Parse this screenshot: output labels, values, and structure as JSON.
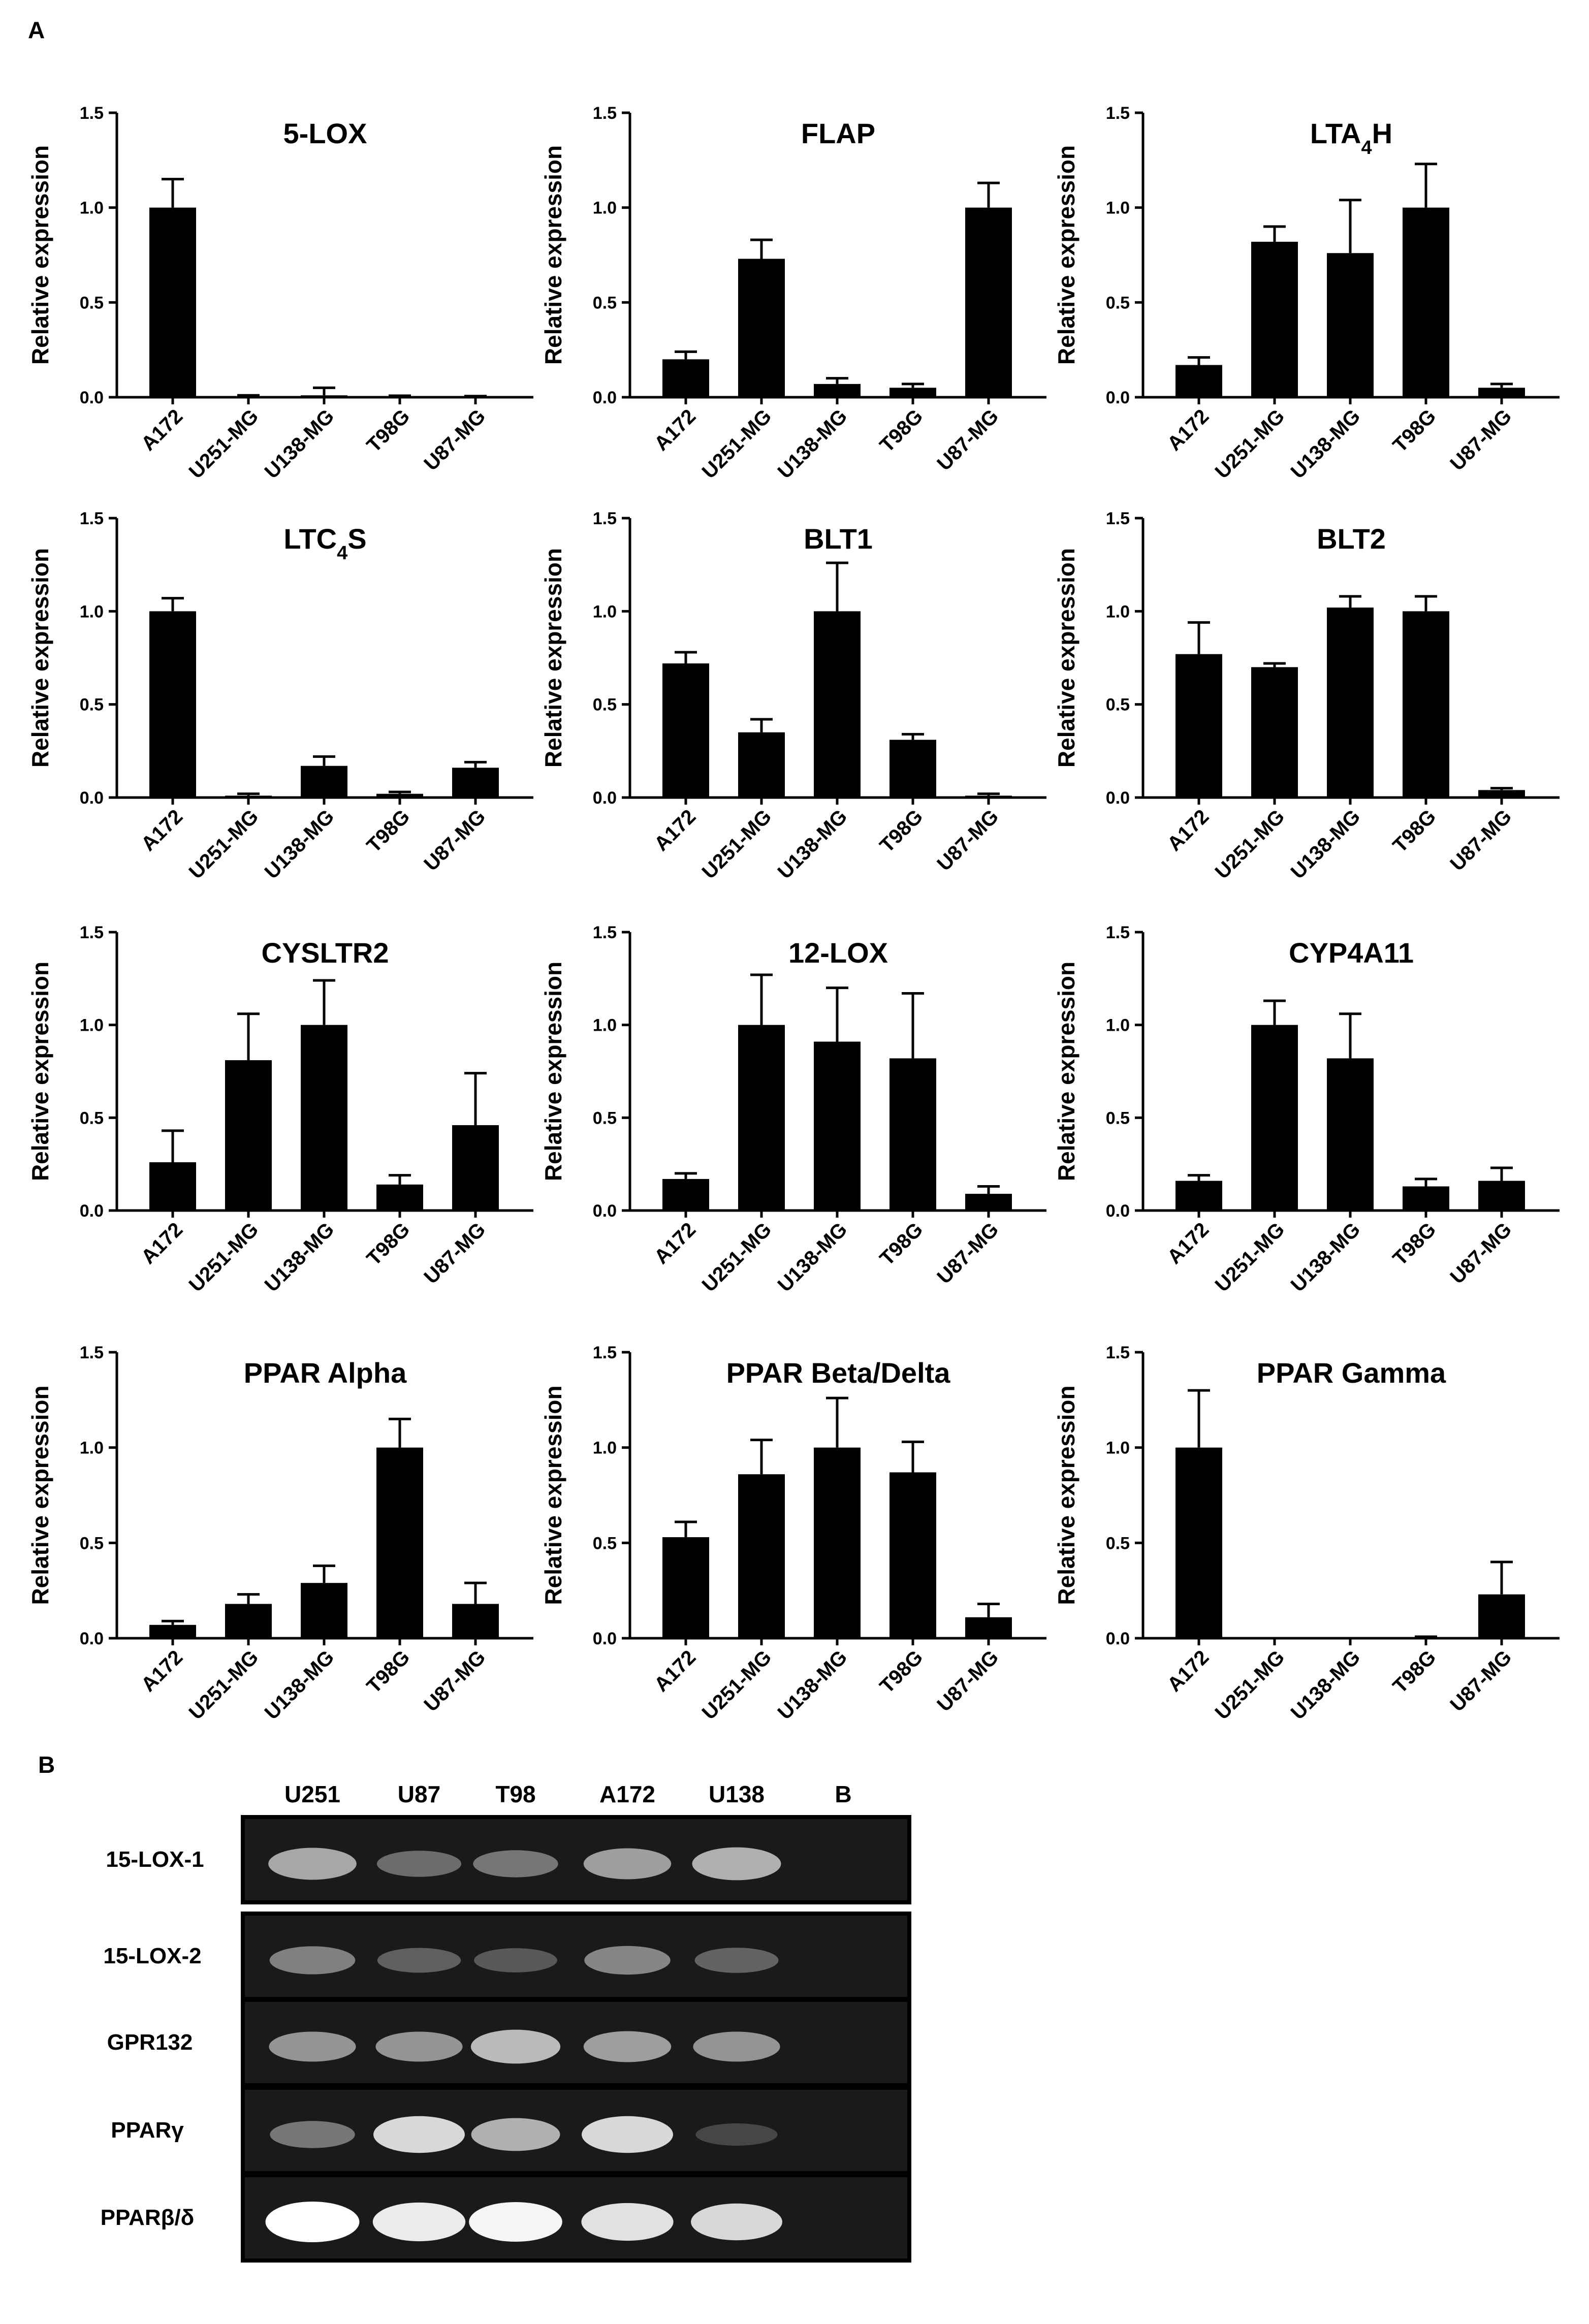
{
  "panels": {
    "a": "A",
    "b": "B"
  },
  "colors": {
    "bar": "#000000",
    "axis": "#000000",
    "gel_background": "#1a1a1a",
    "gel_border": "#000000",
    "band": "#ffffff"
  },
  "chart_data": [
    {
      "type": "bar",
      "title": "5-LOX",
      "ylabel": "Relative expression",
      "ylim": [
        0,
        1.5
      ],
      "yticks": [
        "0.0",
        "0.5",
        "1.0",
        "1.5"
      ],
      "categories": [
        "A172",
        "U251-MG",
        "U138-MG",
        "T98G",
        "U87-MG"
      ],
      "values": [
        1.0,
        0.005,
        0.01,
        0.004,
        0.003
      ],
      "errors": [
        0.15,
        0.005,
        0.04,
        0.004,
        0.003
      ]
    },
    {
      "type": "bar",
      "title": "FLAP",
      "ylabel": "Relative expression",
      "ylim": [
        0,
        1.5
      ],
      "yticks": [
        "0.0",
        "0.5",
        "1.0",
        "1.5"
      ],
      "categories": [
        "A172",
        "U251-MG",
        "U138-MG",
        "T98G",
        "U87-MG"
      ],
      "values": [
        0.2,
        0.73,
        0.07,
        0.05,
        1.0
      ],
      "errors": [
        0.04,
        0.1,
        0.03,
        0.02,
        0.13
      ]
    },
    {
      "type": "bar",
      "title": "LTA",
      "title_sub": "4",
      "title_suffix": "H",
      "ylabel": "Relative expression",
      "ylim": [
        0,
        1.5
      ],
      "yticks": [
        "0.0",
        "0.5",
        "1.0",
        "1.5"
      ],
      "categories": [
        "A172",
        "U251-MG",
        "U138-MG",
        "T98G",
        "U87-MG"
      ],
      "values": [
        0.17,
        0.82,
        0.76,
        1.0,
        0.05
      ],
      "errors": [
        0.04,
        0.08,
        0.28,
        0.23,
        0.02
      ]
    },
    {
      "type": "bar",
      "title": "LTC",
      "title_sub": "4",
      "title_suffix": "S",
      "ylabel": "Relative expression",
      "ylim": [
        0,
        1.5
      ],
      "yticks": [
        "0.0",
        "0.5",
        "1.0",
        "1.5"
      ],
      "categories": [
        "A172",
        "U251-MG",
        "U138-MG",
        "T98G",
        "U87-MG"
      ],
      "values": [
        1.0,
        0.01,
        0.17,
        0.02,
        0.16
      ],
      "errors": [
        0.07,
        0.01,
        0.05,
        0.01,
        0.03
      ]
    },
    {
      "type": "bar",
      "title": "BLT1",
      "ylabel": "Relative expression",
      "ylim": [
        0,
        1.5
      ],
      "yticks": [
        "0.0",
        "0.5",
        "1.0",
        "1.5"
      ],
      "categories": [
        "A172",
        "U251-MG",
        "U138-MG",
        "T98G",
        "U87-MG"
      ],
      "values": [
        0.72,
        0.35,
        1.0,
        0.31,
        0.01
      ],
      "errors": [
        0.06,
        0.07,
        0.26,
        0.03,
        0.01
      ]
    },
    {
      "type": "bar",
      "title": "BLT2",
      "ylabel": "Relative expression",
      "ylim": [
        0,
        1.5
      ],
      "yticks": [
        "0.0",
        "0.5",
        "1.0",
        "1.5"
      ],
      "categories": [
        "A172",
        "U251-MG",
        "U138-MG",
        "T98G",
        "U87-MG"
      ],
      "values": [
        0.77,
        0.7,
        1.02,
        1.0,
        0.04
      ],
      "errors": [
        0.17,
        0.02,
        0.06,
        0.08,
        0.01
      ]
    },
    {
      "type": "bar",
      "title": "CYSLTR2",
      "ylabel": "Relative expression",
      "ylim": [
        0,
        1.5
      ],
      "yticks": [
        "0.0",
        "0.5",
        "1.0",
        "1.5"
      ],
      "categories": [
        "A172",
        "U251-MG",
        "U138-MG",
        "T98G",
        "U87-MG"
      ],
      "values": [
        0.26,
        0.81,
        1.0,
        0.14,
        0.46
      ],
      "errors": [
        0.17,
        0.25,
        0.24,
        0.05,
        0.28
      ]
    },
    {
      "type": "bar",
      "title": "12-LOX",
      "ylabel": "Relative expression",
      "ylim": [
        0,
        1.5
      ],
      "yticks": [
        "0.0",
        "0.5",
        "1.0",
        "1.5"
      ],
      "categories": [
        "A172",
        "U251-MG",
        "U138-MG",
        "T98G",
        "U87-MG"
      ],
      "values": [
        0.17,
        1.0,
        0.91,
        0.82,
        0.09
      ],
      "errors": [
        0.03,
        0.27,
        0.29,
        0.35,
        0.04
      ]
    },
    {
      "type": "bar",
      "title": "CYP4A11",
      "ylabel": "Relative expression",
      "ylim": [
        0,
        1.5
      ],
      "yticks": [
        "0.0",
        "0.5",
        "1.0",
        "1.5"
      ],
      "categories": [
        "A172",
        "U251-MG",
        "U138-MG",
        "T98G",
        "U87-MG"
      ],
      "values": [
        0.16,
        1.0,
        0.82,
        0.13,
        0.16
      ],
      "errors": [
        0.03,
        0.13,
        0.24,
        0.04,
        0.07
      ]
    },
    {
      "type": "bar",
      "title": "PPAR Alpha",
      "ylabel": "Relative expression",
      "ylim": [
        0,
        1.5
      ],
      "yticks": [
        "0.0",
        "0.5",
        "1.0",
        "1.5"
      ],
      "categories": [
        "A172",
        "U251-MG",
        "U138-MG",
        "T98G",
        "U87-MG"
      ],
      "values": [
        0.07,
        0.18,
        0.29,
        1.0,
        0.18
      ],
      "errors": [
        0.02,
        0.05,
        0.09,
        0.15,
        0.11
      ]
    },
    {
      "type": "bar",
      "title": "PPAR Beta/Delta",
      "ylabel": "Relative expression",
      "ylim": [
        0,
        1.5
      ],
      "yticks": [
        "0.0",
        "0.5",
        "1.0",
        "1.5"
      ],
      "categories": [
        "A172",
        "U251-MG",
        "U138-MG",
        "T98G",
        "U87-MG"
      ],
      "values": [
        0.53,
        0.86,
        1.0,
        0.87,
        0.11
      ],
      "errors": [
        0.08,
        0.18,
        0.26,
        0.16,
        0.07
      ]
    },
    {
      "type": "bar",
      "title": "PPAR Gamma",
      "ylabel": "Relative expression",
      "ylim": [
        0,
        1.5
      ],
      "yticks": [
        "0.0",
        "0.5",
        "1.0",
        "1.5"
      ],
      "categories": [
        "A172",
        "U251-MG",
        "U138-MG",
        "T98G",
        "U87-MG"
      ],
      "values": [
        1.0,
        0.0,
        0.0,
        0.004,
        0.23
      ],
      "errors": [
        0.3,
        0.0,
        0.0,
        0.004,
        0.17
      ]
    }
  ],
  "gel": {
    "columns": [
      "U251",
      "U87",
      "T98",
      "A172",
      "U138",
      "B"
    ],
    "rows": [
      {
        "label": "15-LOX-1",
        "intensities": [
          0.55,
          0.25,
          0.3,
          0.5,
          0.6,
          0.0
        ]
      },
      {
        "label": "15-LOX-2",
        "intensities": [
          0.35,
          0.18,
          0.15,
          0.38,
          0.2,
          0.0
        ]
      },
      {
        "label": "GPR132",
        "intensities": [
          0.45,
          0.45,
          0.65,
          0.5,
          0.45,
          0.0
        ]
      },
      {
        "label": "PPARγ",
        "intensities": [
          0.3,
          0.8,
          0.6,
          0.8,
          0.05,
          0.0
        ]
      },
      {
        "label": "PPARβ/δ",
        "intensities": [
          1.0,
          0.9,
          0.95,
          0.85,
          0.8,
          0.0
        ]
      }
    ]
  }
}
